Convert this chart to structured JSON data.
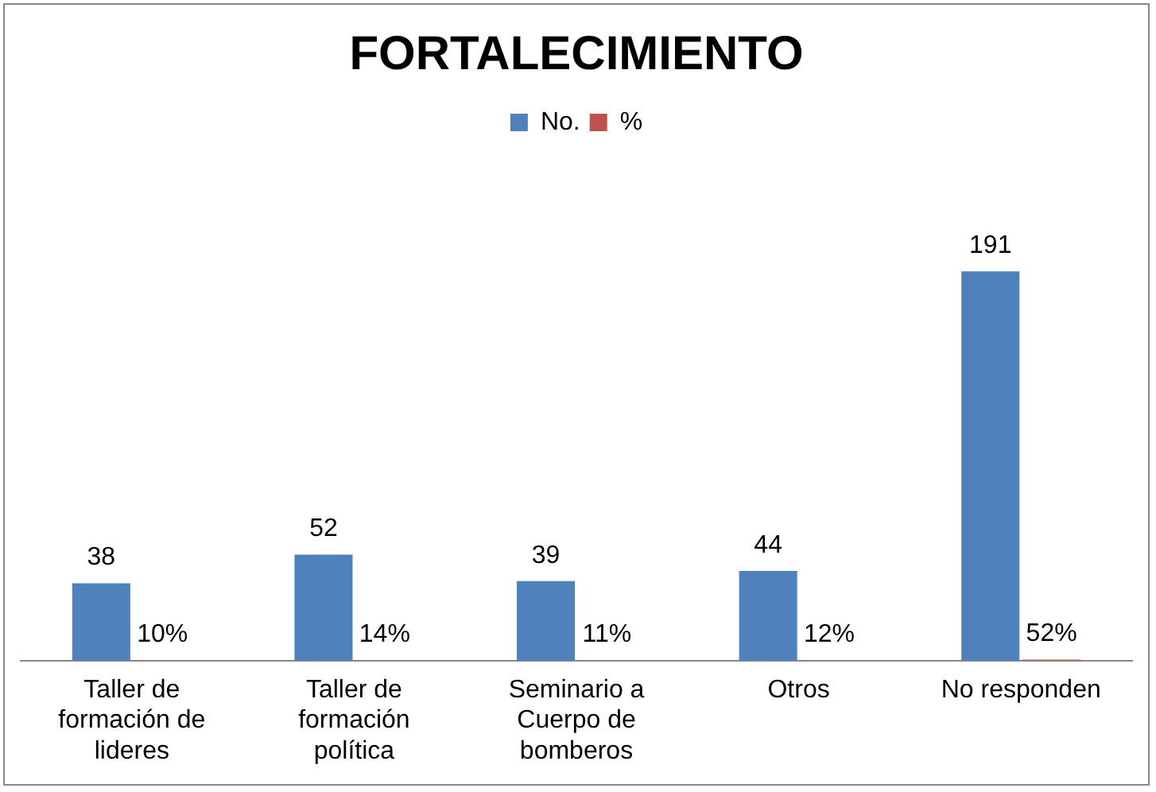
{
  "chart_data": {
    "type": "bar",
    "title": "FORTALECIMIENTO",
    "categories": [
      "Taller de formación de lideres",
      "Taller de formación política",
      "Seminario a Cuerpo de bomberos",
      "Otros",
      "No responden"
    ],
    "series": [
      {
        "name": "No.",
        "color": "#4f81bd",
        "values": [
          38,
          52,
          39,
          44,
          191
        ],
        "value_labels": [
          "38",
          "52",
          "39",
          "44",
          "191"
        ]
      },
      {
        "name": "%",
        "color": "#c0504d",
        "values": [
          0.1,
          0.14,
          0.11,
          0.12,
          0.52
        ],
        "value_labels": [
          "10%",
          "14%",
          "11%",
          "12%",
          "52%"
        ]
      }
    ],
    "tick_labels": "x",
    "legend": "top",
    "grid": false
  }
}
